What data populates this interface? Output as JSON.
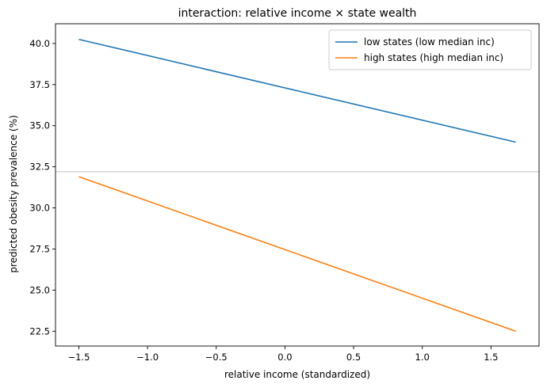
{
  "chart_data": {
    "type": "line",
    "title": "interaction: relative income × state wealth",
    "xlabel": "relative income (standardized)",
    "ylabel": "predicted obesity prevalence (%)",
    "xlim": [
      -1.67,
      1.85
    ],
    "ylim": [
      21.6,
      41.2
    ],
    "xticks": [
      -1.5,
      -1.0,
      -0.5,
      0.0,
      0.5,
      1.0,
      1.5
    ],
    "xtick_labels": [
      "−1.5",
      "−1.0",
      "−0.5",
      "0.0",
      "0.5",
      "1.0",
      "1.5"
    ],
    "yticks": [
      22.5,
      25.0,
      27.5,
      30.0,
      32.5,
      35.0,
      37.5,
      40.0
    ],
    "ytick_labels": [
      "22.5",
      "25.0",
      "27.5",
      "30.0",
      "32.5",
      "35.0",
      "37.5",
      "40.0"
    ],
    "grid": false,
    "legend_position": "top-right",
    "reference_line": {
      "orientation": "horizontal",
      "y": 32.2,
      "color": "#c0c0c0"
    },
    "series": [
      {
        "name": "low states (low median inc)",
        "color": "#1f77b4",
        "x": [
          -1.5,
          1.68
        ],
        "y": [
          40.25,
          34.0
        ]
      },
      {
        "name": "high states (high median inc)",
        "color": "#ff7f0e",
        "x": [
          -1.5,
          1.68
        ],
        "y": [
          31.9,
          22.5
        ]
      }
    ]
  }
}
